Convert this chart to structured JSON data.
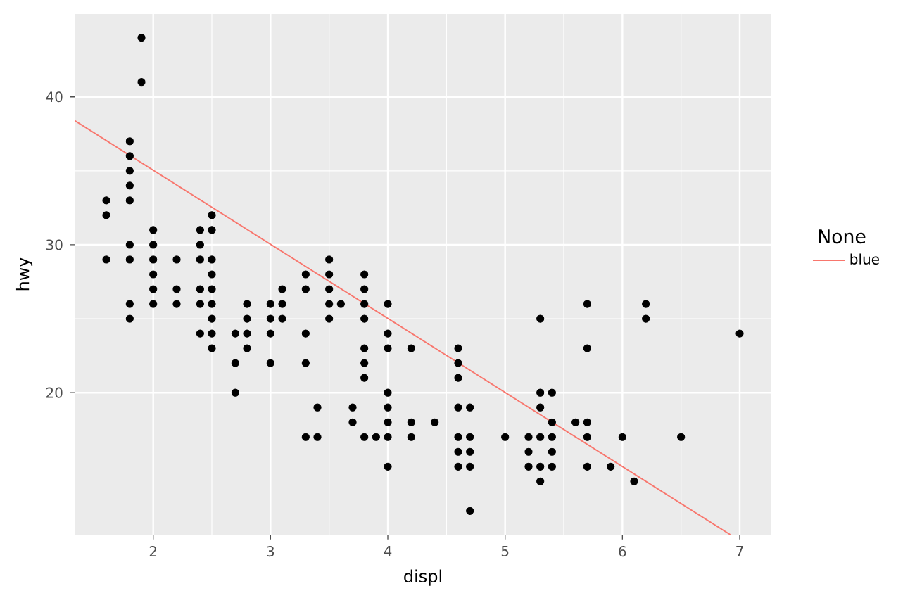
{
  "chart_data": {
    "type": "scatter",
    "xlabel": "displ",
    "ylabel": "hwy",
    "xlim": [
      1.33,
      7.27
    ],
    "ylim": [
      10.4,
      45.6
    ],
    "xticks": [
      2,
      3,
      4,
      5,
      6,
      7
    ],
    "yticks": [
      20,
      30,
      40
    ],
    "grid": true,
    "legend": "right",
    "legend_title": "None",
    "series": [
      {
        "color": "#000000",
        "marker": "circle",
        "x": [
          1.6,
          1.6,
          1.6,
          1.8,
          1.8,
          1.8,
          1.8,
          1.8,
          1.8,
          1.8,
          1.8,
          1.8,
          1.9,
          1.9,
          2.0,
          2.0,
          2.0,
          2.0,
          2.0,
          2.0,
          2.2,
          2.2,
          2.2,
          2.4,
          2.4,
          2.4,
          2.4,
          2.4,
          2.4,
          2.5,
          2.5,
          2.5,
          2.5,
          2.5,
          2.5,
          2.5,
          2.5,
          2.5,
          2.7,
          2.7,
          2.7,
          2.8,
          2.8,
          2.8,
          2.8,
          3.0,
          3.0,
          3.0,
          3.0,
          3.1,
          3.1,
          3.1,
          3.3,
          3.3,
          3.3,
          3.3,
          3.3,
          3.4,
          3.4,
          3.5,
          3.5,
          3.5,
          3.5,
          3.5,
          3.6,
          3.7,
          3.7,
          3.8,
          3.8,
          3.8,
          3.8,
          3.8,
          3.8,
          3.8,
          3.8,
          3.9,
          4.0,
          4.0,
          4.0,
          4.0,
          4.0,
          4.0,
          4.0,
          4.0,
          4.2,
          4.2,
          4.2,
          4.4,
          4.6,
          4.6,
          4.6,
          4.6,
          4.6,
          4.6,
          4.6,
          4.7,
          4.7,
          4.7,
          4.7,
          4.7,
          5.0,
          5.2,
          5.2,
          5.2,
          5.3,
          5.3,
          5.3,
          5.3,
          5.3,
          5.3,
          5.4,
          5.4,
          5.4,
          5.4,
          5.4,
          5.6,
          5.7,
          5.7,
          5.7,
          5.7,
          5.7,
          5.9,
          6.0,
          6.1,
          6.2,
          6.2,
          6.5,
          7.0
        ],
        "values": [
          33,
          32,
          29,
          37,
          36,
          35,
          34,
          33,
          30,
          29,
          26,
          25,
          44,
          41,
          31,
          30,
          29,
          28,
          27,
          26,
          29,
          27,
          26,
          31,
          30,
          29,
          27,
          26,
          24,
          32,
          31,
          29,
          28,
          27,
          26,
          25,
          24,
          23,
          24,
          22,
          20,
          26,
          25,
          24,
          23,
          26,
          25,
          24,
          22,
          27,
          26,
          25,
          28,
          27,
          24,
          22,
          17,
          19,
          17,
          29,
          28,
          27,
          26,
          25,
          26,
          19,
          18,
          28,
          27,
          26,
          25,
          23,
          22,
          21,
          17,
          17,
          26,
          24,
          23,
          20,
          19,
          18,
          17,
          15,
          23,
          18,
          17,
          18,
          23,
          22,
          21,
          19,
          17,
          16,
          15,
          19,
          17,
          16,
          15,
          12,
          17,
          17,
          16,
          15,
          25,
          20,
          19,
          17,
          15,
          14,
          20,
          18,
          17,
          16,
          15,
          18,
          26,
          23,
          18,
          17,
          15,
          15,
          17,
          14,
          26,
          25,
          17,
          24
        ]
      },
      {
        "type": "line",
        "name": "blue",
        "color": "#f8766d",
        "marker": "none",
        "x": [
          1.33,
          6.92
        ],
        "values": [
          38.4,
          10.4
        ]
      }
    ]
  }
}
